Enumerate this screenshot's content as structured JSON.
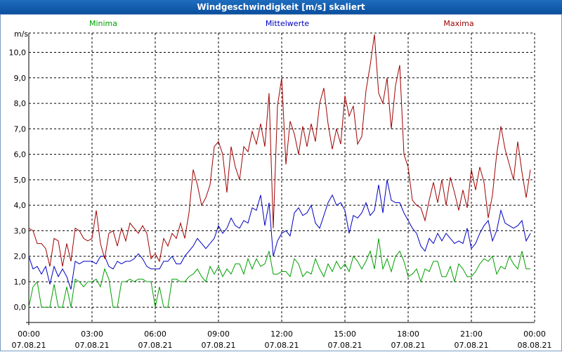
{
  "window": {
    "title": "Windgeschwindigkeit [m/s] skaliert"
  },
  "chart_data": {
    "type": "line",
    "title": "Windgeschwindigkeit [m/s] skaliert",
    "ylabel": "m/s",
    "xlabel": "",
    "ylim": [
      -0.6,
      11.2
    ],
    "xlim": [
      0,
      24
    ],
    "yticks": [
      0,
      1,
      2,
      3,
      4,
      5,
      6,
      7,
      8,
      9,
      10
    ],
    "ytick_labels": [
      "0,0",
      "1,0",
      "2,0",
      "3,0",
      "4,0",
      "5,0",
      "6,0",
      "7,0",
      "8,0",
      "9,0",
      "10,0"
    ],
    "xticks": [
      0,
      3,
      6,
      9,
      12,
      15,
      18,
      21,
      24
    ],
    "xtick_times": [
      "00:00",
      "03:00",
      "06:00",
      "09:00",
      "12:00",
      "15:00",
      "18:00",
      "21:00",
      "00:00"
    ],
    "xtick_dates": [
      "07.08.21",
      "07.08.21",
      "07.08.21",
      "07.08.21",
      "07.08.21",
      "07.08.21",
      "07.08.21",
      "07.08.21",
      "08.08.21"
    ],
    "grid": true,
    "legend": [
      "Minima",
      "Mittelwerte",
      "Maxima"
    ],
    "series": [
      {
        "name": "Minima",
        "color": "#00a000",
        "x": [
          0.0,
          0.2,
          0.4,
          0.6,
          0.8,
          1.0,
          1.2,
          1.4,
          1.6,
          1.8,
          2.0,
          2.2,
          2.4,
          2.6,
          2.8,
          3.0,
          3.2,
          3.4,
          3.6,
          3.8,
          4.0,
          4.2,
          4.4,
          4.6,
          4.8,
          5.0,
          5.2,
          5.4,
          5.6,
          5.8,
          6.0,
          6.2,
          6.4,
          6.6,
          6.8,
          7.0,
          7.2,
          7.4,
          7.6,
          7.8,
          8.0,
          8.2,
          8.4,
          8.6,
          8.8,
          9.0,
          9.2,
          9.4,
          9.6,
          9.8,
          10.0,
          10.2,
          10.4,
          10.6,
          10.8,
          11.0,
          11.2,
          11.4,
          11.6,
          11.8,
          12.0,
          12.2,
          12.4,
          12.6,
          12.8,
          13.0,
          13.2,
          13.4,
          13.6,
          13.8,
          14.0,
          14.2,
          14.4,
          14.6,
          14.8,
          15.0,
          15.2,
          15.4,
          15.6,
          15.8,
          16.0,
          16.2,
          16.4,
          16.6,
          16.8,
          17.0,
          17.2,
          17.4,
          17.6,
          17.8,
          18.0,
          18.2,
          18.4,
          18.6,
          18.8,
          19.0,
          19.2,
          19.4,
          19.6,
          19.8,
          20.0,
          20.2,
          20.4,
          20.6,
          20.8,
          21.0,
          21.2,
          21.4,
          21.6,
          21.8,
          22.0,
          22.2,
          22.4,
          22.6,
          22.8,
          23.0,
          23.2,
          23.4,
          23.6,
          23.8
        ],
        "y": [
          0.0,
          0.8,
          1.0,
          0.0,
          0.0,
          0.0,
          0.9,
          0.0,
          0.0,
          0.8,
          0.0,
          1.1,
          1.0,
          0.8,
          1.0,
          1.0,
          1.1,
          0.8,
          1.5,
          1.1,
          0.0,
          0.0,
          1.0,
          1.0,
          1.1,
          1.0,
          1.1,
          1.1,
          1.0,
          1.0,
          0.0,
          0.8,
          0.0,
          0.0,
          1.1,
          1.1,
          1.0,
          1.0,
          1.2,
          1.3,
          1.5,
          1.2,
          1.0,
          1.6,
          1.3,
          1.6,
          1.2,
          1.5,
          1.3,
          1.7,
          1.7,
          1.3,
          1.9,
          1.5,
          1.9,
          1.6,
          1.7,
          2.2,
          1.3,
          1.3,
          1.4,
          1.4,
          1.2,
          1.9,
          1.7,
          1.2,
          1.4,
          1.3,
          1.9,
          1.5,
          1.2,
          1.7,
          1.4,
          1.8,
          1.5,
          1.7,
          1.4,
          2.0,
          1.8,
          1.5,
          1.8,
          2.2,
          1.5,
          2.7,
          1.5,
          1.9,
          1.4,
          2.0,
          2.2,
          1.8,
          1.2,
          1.3,
          1.5,
          1.0,
          1.5,
          1.4,
          1.8,
          1.8,
          1.2,
          1.2,
          1.6,
          1.0,
          1.7,
          1.5,
          1.2,
          1.2,
          1.4,
          1.7,
          1.9,
          1.8,
          2.0,
          1.3,
          1.6,
          1.5,
          2.0,
          1.7,
          1.5,
          2.2,
          1.5,
          1.5
        ]
      },
      {
        "name": "Mittelwerte",
        "color": "#0000c0",
        "x": [
          0.0,
          0.2,
          0.4,
          0.6,
          0.8,
          1.0,
          1.2,
          1.4,
          1.6,
          1.8,
          2.0,
          2.2,
          2.4,
          2.6,
          2.8,
          3.0,
          3.2,
          3.4,
          3.6,
          3.8,
          4.0,
          4.2,
          4.4,
          4.6,
          4.8,
          5.0,
          5.2,
          5.4,
          5.6,
          5.8,
          6.0,
          6.2,
          6.4,
          6.6,
          6.8,
          7.0,
          7.2,
          7.4,
          7.6,
          7.8,
          8.0,
          8.2,
          8.4,
          8.6,
          8.8,
          9.0,
          9.2,
          9.4,
          9.6,
          9.8,
          10.0,
          10.2,
          10.4,
          10.6,
          10.8,
          11.0,
          11.2,
          11.4,
          11.6,
          11.8,
          12.0,
          12.2,
          12.4,
          12.6,
          12.8,
          13.0,
          13.2,
          13.4,
          13.6,
          13.8,
          14.0,
          14.2,
          14.4,
          14.6,
          14.8,
          15.0,
          15.2,
          15.4,
          15.6,
          15.8,
          16.0,
          16.2,
          16.4,
          16.6,
          16.8,
          17.0,
          17.2,
          17.4,
          17.6,
          17.8,
          18.0,
          18.2,
          18.4,
          18.6,
          18.8,
          19.0,
          19.2,
          19.4,
          19.6,
          19.8,
          20.0,
          20.2,
          20.4,
          20.6,
          20.8,
          21.0,
          21.2,
          21.4,
          21.6,
          21.8,
          22.0,
          22.2,
          22.4,
          22.6,
          22.8,
          23.0,
          23.2,
          23.4,
          23.6,
          23.8
        ],
        "y": [
          2.0,
          1.5,
          1.6,
          1.3,
          1.6,
          0.9,
          1.6,
          1.2,
          1.5,
          1.2,
          0.7,
          1.8,
          1.7,
          1.8,
          1.8,
          1.8,
          1.7,
          2.0,
          2.0,
          1.6,
          1.5,
          1.8,
          1.7,
          1.8,
          1.8,
          1.9,
          2.1,
          1.9,
          1.6,
          1.5,
          1.5,
          1.5,
          1.8,
          1.8,
          2.0,
          1.7,
          1.7,
          2.0,
          2.2,
          2.4,
          2.7,
          2.5,
          2.3,
          2.5,
          2.7,
          3.2,
          2.9,
          3.1,
          3.5,
          3.2,
          3.1,
          3.4,
          3.3,
          3.9,
          3.8,
          4.4,
          3.2,
          4.1,
          2.0,
          2.6,
          2.9,
          3.0,
          2.8,
          3.7,
          3.9,
          3.6,
          3.7,
          4.0,
          3.3,
          3.1,
          3.6,
          4.1,
          4.4,
          4.0,
          4.1,
          3.8,
          2.9,
          3.6,
          3.5,
          3.7,
          4.1,
          3.6,
          3.8,
          4.8,
          3.7,
          5.0,
          4.2,
          4.1,
          4.1,
          3.7,
          3.4,
          3.1,
          2.9,
          2.4,
          2.2,
          2.7,
          2.5,
          2.9,
          2.6,
          2.9,
          2.7,
          2.5,
          2.6,
          2.5,
          3.1,
          2.3,
          2.5,
          2.9,
          3.2,
          3.4,
          2.6,
          3.0,
          3.8,
          3.3,
          3.2,
          3.1,
          3.2,
          3.4,
          2.6,
          2.9
        ]
      },
      {
        "name": "Maxima",
        "color": "#a00000",
        "x": [
          0.0,
          0.2,
          0.4,
          0.6,
          0.8,
          1.0,
          1.2,
          1.4,
          1.6,
          1.8,
          2.0,
          2.2,
          2.4,
          2.6,
          2.8,
          3.0,
          3.2,
          3.4,
          3.6,
          3.8,
          4.0,
          4.2,
          4.4,
          4.6,
          4.8,
          5.0,
          5.2,
          5.4,
          5.6,
          5.8,
          6.0,
          6.2,
          6.4,
          6.6,
          6.8,
          7.0,
          7.2,
          7.4,
          7.6,
          7.8,
          8.0,
          8.2,
          8.4,
          8.6,
          8.8,
          9.0,
          9.2,
          9.4,
          9.6,
          9.8,
          10.0,
          10.2,
          10.4,
          10.6,
          10.8,
          11.0,
          11.2,
          11.4,
          11.6,
          11.8,
          12.0,
          12.2,
          12.4,
          12.6,
          12.8,
          13.0,
          13.2,
          13.4,
          13.6,
          13.8,
          14.0,
          14.2,
          14.4,
          14.6,
          14.8,
          15.0,
          15.2,
          15.4,
          15.6,
          15.8,
          16.0,
          16.2,
          16.4,
          16.6,
          16.8,
          17.0,
          17.2,
          17.4,
          17.6,
          17.8,
          18.0,
          18.2,
          18.4,
          18.6,
          18.8,
          19.0,
          19.2,
          19.4,
          19.6,
          19.8,
          20.0,
          20.2,
          20.4,
          20.6,
          20.8,
          21.0,
          21.2,
          21.4,
          21.6,
          21.8,
          22.0,
          22.2,
          22.4,
          22.6,
          22.8,
          23.0,
          23.2,
          23.4,
          23.6,
          23.8
        ],
        "y": [
          3.1,
          3.0,
          2.5,
          2.5,
          2.3,
          1.6,
          2.7,
          2.6,
          1.6,
          2.5,
          1.8,
          3.1,
          3.0,
          2.7,
          2.6,
          2.7,
          3.8,
          2.5,
          1.9,
          2.9,
          3.0,
          2.4,
          3.1,
          2.6,
          3.3,
          3.1,
          2.9,
          3.2,
          2.9,
          1.9,
          2.1,
          1.8,
          2.7,
          2.4,
          2.9,
          2.7,
          3.3,
          2.7,
          3.7,
          5.4,
          4.8,
          4.0,
          4.3,
          4.8,
          6.3,
          6.5,
          6.0,
          4.5,
          6.3,
          5.5,
          5.0,
          6.3,
          6.1,
          6.9,
          6.4,
          7.2,
          6.3,
          8.4,
          3.1,
          7.9,
          9.0,
          5.6,
          7.3,
          6.8,
          6.0,
          7.1,
          6.3,
          7.2,
          6.5,
          8.0,
          8.6,
          7.2,
          6.2,
          7.0,
          6.4,
          8.3,
          7.5,
          7.9,
          6.4,
          6.7,
          8.5,
          9.5,
          10.7,
          8.4,
          8.0,
          9.0,
          7.0,
          8.7,
          9.5,
          6.0,
          5.5,
          4.2,
          4.0,
          3.9,
          3.4,
          4.2,
          4.9,
          4.1,
          5.0,
          4.0,
          5.1,
          4.5,
          3.8,
          4.6,
          3.9,
          5.4,
          4.6,
          5.5,
          4.9,
          3.5,
          4.4,
          6.0,
          7.1,
          6.2,
          5.6,
          5.0,
          6.5,
          5.3,
          4.3,
          5.4
        ]
      }
    ]
  }
}
